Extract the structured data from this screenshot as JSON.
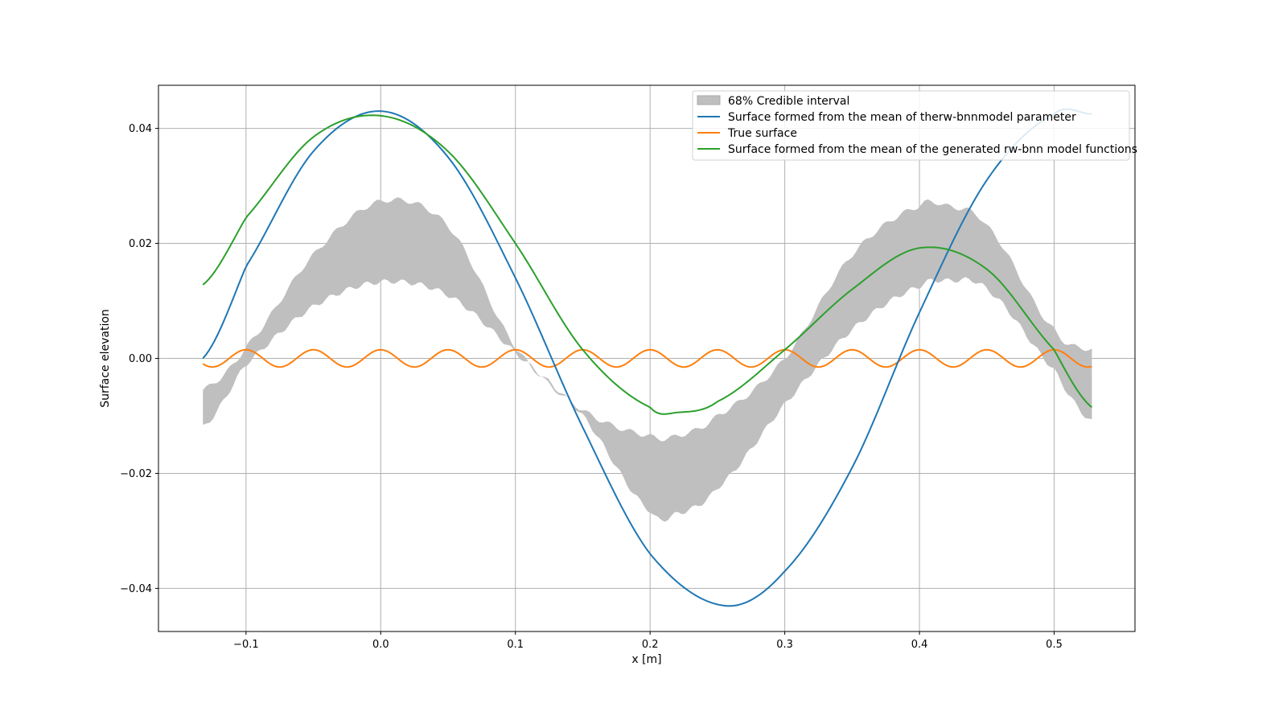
{
  "chart_data": {
    "type": "line",
    "title": "",
    "xlabel": "x [m]",
    "ylabel": "Surface elevation",
    "xlim": [
      -0.165,
      0.56
    ],
    "ylim": [
      -0.0475,
      0.0475
    ],
    "xticks": [
      -0.1,
      0.0,
      0.1,
      0.2,
      0.3,
      0.4,
      0.5
    ],
    "xtick_labels": [
      "−0.1",
      "0.0",
      "0.1",
      "0.2",
      "0.3",
      "0.4",
      "0.5"
    ],
    "yticks": [
      -0.04,
      -0.02,
      0.0,
      0.02,
      0.04
    ],
    "ytick_labels": [
      "−0.04",
      "−0.02",
      "0.00",
      "0.02",
      "0.04"
    ],
    "grid": true,
    "legend_position": "top-right",
    "band": {
      "name": "68% Credible interval",
      "color": "#bfbfbf",
      "x": [
        -0.132,
        -0.1,
        -0.05,
        0.0,
        0.05,
        0.1,
        0.15,
        0.2,
        0.22,
        0.25,
        0.3,
        0.35,
        0.4,
        0.42,
        0.45,
        0.5,
        0.528
      ],
      "lower": [
        -0.012,
        -0.001,
        0.009,
        0.0133,
        0.011,
        0.001,
        -0.01,
        -0.0265,
        -0.027,
        -0.0225,
        -0.008,
        0.005,
        0.0125,
        0.0135,
        0.012,
        -0.002,
        -0.011
      ],
      "upper": [
        -0.0055,
        0.002,
        0.018,
        0.0273,
        0.023,
        0.002,
        -0.009,
        -0.0135,
        -0.0135,
        -0.01,
        0.0,
        0.018,
        0.0265,
        0.0265,
        0.023,
        0.005,
        0.0015
      ]
    },
    "series": [
      {
        "name": "Surface formed from the mean of therw-bnnmodel parameter",
        "color": "#1f77b4",
        "x": [
          -0.132,
          -0.1,
          -0.05,
          0.0,
          0.05,
          0.1,
          0.15,
          0.2,
          0.255,
          0.3,
          0.35,
          0.4,
          0.45,
          0.5,
          0.528
        ],
        "y": [
          0.0,
          0.016,
          0.036,
          0.043,
          0.035,
          0.014,
          -0.012,
          -0.034,
          -0.043,
          -0.037,
          -0.019,
          0.008,
          0.031,
          0.0425,
          0.0425
        ]
      },
      {
        "name": "True surface",
        "color": "#ff7f0e",
        "x_range": [
          -0.132,
          0.528
        ],
        "amplitude": 0.0015,
        "wavelength": 0.05,
        "phase_peak": 0.0
      },
      {
        "name": "Surface formed from the mean of the generated rw-bnn model functions",
        "color": "#2ca02c",
        "x": [
          -0.132,
          -0.1,
          -0.05,
          0.0,
          0.05,
          0.1,
          0.15,
          0.2,
          0.22,
          0.25,
          0.3,
          0.35,
          0.4,
          0.45,
          0.5,
          0.528
        ],
        "y": [
          0.0128,
          0.0245,
          0.0385,
          0.0422,
          0.036,
          0.02,
          0.0015,
          -0.0085,
          -0.0094,
          -0.0075,
          0.0015,
          0.012,
          0.0192,
          0.0155,
          0.0015,
          -0.0085
        ]
      }
    ]
  }
}
